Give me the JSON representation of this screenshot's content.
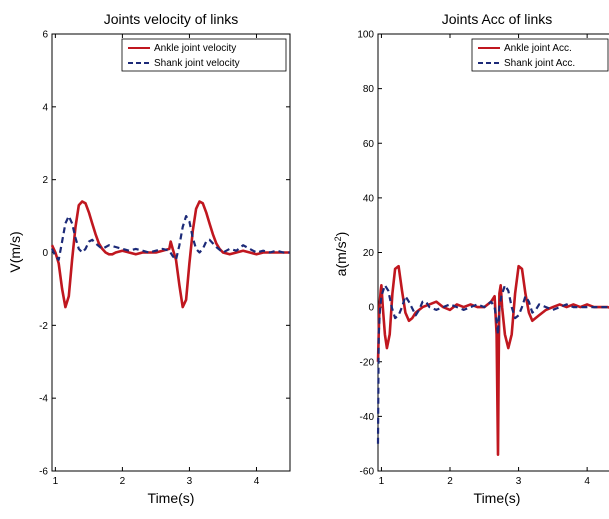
{
  "colors": {
    "ankle": "#c0171f",
    "shank": "#1c2a78",
    "axis": "#000000",
    "background": "#ffffff"
  },
  "chart_data": [
    {
      "type": "line",
      "title": "Joints velocity of links",
      "xlabel": "Time(s)",
      "ylabel": "V(m/s)",
      "xlim": [
        0.95,
        4.5
      ],
      "ylim": [
        -6,
        6
      ],
      "xticks": [
        1,
        2,
        3,
        4
      ],
      "yticks": [
        -6,
        -4,
        -2,
        0,
        2,
        4,
        6
      ],
      "grid": false,
      "legend_position": "top-right",
      "series": [
        {
          "name": "Ankle joint velocity",
          "style": "solid",
          "x": [
            0.95,
            1.0,
            1.05,
            1.1,
            1.15,
            1.2,
            1.25,
            1.3,
            1.35,
            1.4,
            1.45,
            1.5,
            1.55,
            1.6,
            1.65,
            1.7,
            1.75,
            1.8,
            1.85,
            1.9,
            2.0,
            2.1,
            2.2,
            2.3,
            2.4,
            2.5,
            2.6,
            2.7,
            2.72,
            2.75,
            2.8,
            2.85,
            2.9,
            2.95,
            3.0,
            3.05,
            3.1,
            3.15,
            3.2,
            3.25,
            3.3,
            3.35,
            3.4,
            3.45,
            3.5,
            3.6,
            3.7,
            3.8,
            3.9,
            4.0,
            4.1,
            4.2,
            4.3,
            4.4,
            4.5
          ],
          "y": [
            0.2,
            0.0,
            -0.3,
            -1.0,
            -1.5,
            -1.2,
            -0.2,
            0.7,
            1.3,
            1.4,
            1.35,
            1.1,
            0.8,
            0.5,
            0.25,
            0.1,
            0.0,
            -0.05,
            -0.05,
            0.0,
            0.05,
            0.0,
            -0.05,
            0.0,
            0.0,
            0.0,
            0.05,
            0.1,
            0.3,
            0.1,
            -0.2,
            -0.9,
            -1.5,
            -1.3,
            -0.3,
            0.6,
            1.2,
            1.4,
            1.35,
            1.1,
            0.8,
            0.5,
            0.25,
            0.1,
            0.0,
            -0.05,
            0.0,
            0.05,
            0.0,
            -0.05,
            0.0,
            0.0,
            0.0,
            0.0,
            0.0
          ]
        },
        {
          "name": "Shank joint velocity",
          "style": "dashed",
          "x": [
            0.95,
            1.0,
            1.05,
            1.1,
            1.15,
            1.2,
            1.25,
            1.3,
            1.35,
            1.4,
            1.45,
            1.5,
            1.55,
            1.6,
            1.7,
            1.8,
            1.9,
            2.0,
            2.1,
            2.2,
            2.3,
            2.4,
            2.5,
            2.6,
            2.7,
            2.75,
            2.8,
            2.85,
            2.9,
            2.95,
            3.0,
            3.05,
            3.1,
            3.15,
            3.2,
            3.25,
            3.3,
            3.4,
            3.5,
            3.6,
            3.7,
            3.8,
            3.9,
            4.0,
            4.1,
            4.2,
            4.3,
            4.4,
            4.5
          ],
          "y": [
            0.1,
            -0.1,
            -0.2,
            0.3,
            0.8,
            1.0,
            0.8,
            0.4,
            0.1,
            0.0,
            0.1,
            0.3,
            0.35,
            0.25,
            0.1,
            0.2,
            0.15,
            0.1,
            0.05,
            0.1,
            0.05,
            0.0,
            0.05,
            0.1,
            0.05,
            -0.1,
            -0.2,
            0.2,
            0.7,
            1.0,
            0.85,
            0.4,
            0.1,
            0.0,
            0.1,
            0.3,
            0.35,
            0.15,
            0.0,
            0.1,
            0.05,
            0.2,
            0.1,
            0.0,
            0.05,
            0.0,
            0.05,
            0.0,
            0.0
          ]
        }
      ]
    },
    {
      "type": "line",
      "title": "Joints Acc of links",
      "xlabel": "Time(s)",
      "ylabel": "a(m/s",
      "ylabel_sup": "2",
      "ylabel_end": ")",
      "xlim": [
        0.95,
        4.45
      ],
      "ylim": [
        -60,
        100
      ],
      "xticks": [
        1,
        2,
        3,
        4
      ],
      "yticks": [
        -60,
        -40,
        -20,
        0,
        20,
        40,
        60,
        80,
        100
      ],
      "grid": false,
      "legend_position": "top-right",
      "series": [
        {
          "name": "Ankle joint Acc.",
          "style": "solid",
          "x": [
            0.95,
            0.97,
            0.99,
            1.0,
            1.02,
            1.05,
            1.08,
            1.12,
            1.16,
            1.2,
            1.25,
            1.3,
            1.35,
            1.4,
            1.45,
            1.5,
            1.6,
            1.7,
            1.8,
            1.9,
            2.0,
            2.1,
            2.2,
            2.3,
            2.4,
            2.5,
            2.6,
            2.65,
            2.68,
            2.7,
            2.71,
            2.72,
            2.74,
            2.76,
            2.8,
            2.85,
            2.9,
            2.95,
            3.0,
            3.05,
            3.1,
            3.15,
            3.2,
            3.3,
            3.4,
            3.5,
            3.6,
            3.7,
            3.8,
            3.9,
            4.0,
            4.1,
            4.2,
            4.3,
            4.45
          ],
          "y": [
            -20,
            0,
            6,
            8,
            0,
            -10,
            -15,
            -10,
            5,
            14,
            15,
            6,
            -2,
            -5,
            -4,
            -2,
            0,
            1,
            2,
            0,
            -1,
            1,
            0,
            1,
            0,
            0,
            2,
            4,
            -10,
            -54,
            -20,
            5,
            8,
            0,
            -10,
            -15,
            -10,
            5,
            15,
            14,
            5,
            -2,
            -5,
            -3,
            -1,
            0,
            1,
            0,
            1,
            0,
            1,
            0,
            0,
            0,
            -1
          ]
        },
        {
          "name": "Shank joint Acc.",
          "style": "dashed",
          "x": [
            0.95,
            0.96,
            0.98,
            1.0,
            1.05,
            1.1,
            1.15,
            1.2,
            1.25,
            1.3,
            1.35,
            1.4,
            1.5,
            1.55,
            1.6,
            1.65,
            1.7,
            1.8,
            1.9,
            2.0,
            2.1,
            2.2,
            2.3,
            2.4,
            2.5,
            2.6,
            2.65,
            2.68,
            2.7,
            2.72,
            2.75,
            2.8,
            2.85,
            2.9,
            2.95,
            3.0,
            3.05,
            3.1,
            3.15,
            3.2,
            3.25,
            3.3,
            3.4,
            3.5,
            3.6,
            3.7,
            3.8,
            3.9,
            4.0,
            4.1,
            4.2,
            4.3,
            4.45
          ],
          "y": [
            -50,
            -10,
            0,
            4,
            8,
            6,
            0,
            -4,
            -3,
            0,
            4,
            2,
            -3,
            -1,
            2,
            2,
            0,
            -1,
            0,
            1,
            0,
            -1,
            0,
            1,
            0,
            2,
            0,
            -5,
            -10,
            0,
            4,
            8,
            6,
            0,
            -4,
            -3,
            0,
            4,
            2,
            -2,
            -1,
            1,
            0,
            -1,
            0,
            1,
            0,
            0,
            0,
            0,
            0,
            0,
            0
          ]
        }
      ]
    }
  ]
}
